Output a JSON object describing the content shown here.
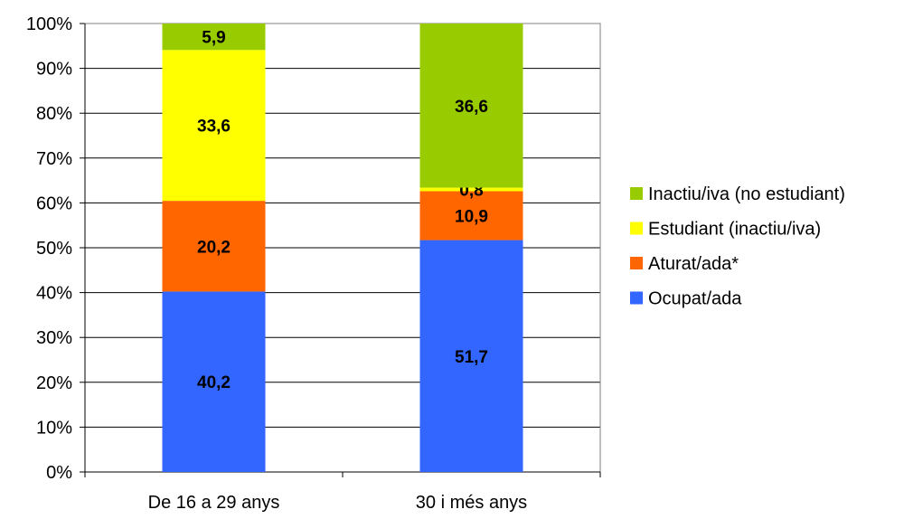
{
  "chart_data": {
    "type": "bar",
    "stacked": true,
    "percent_stacked": true,
    "categories": [
      "De 16 a 29 anys",
      "30 i més anys"
    ],
    "series": [
      {
        "name": "Ocupat/ada",
        "color": "#3366FF",
        "values": [
          40.2,
          51.7
        ]
      },
      {
        "name": "Aturat/ada*",
        "color": "#FF6600",
        "values": [
          20.2,
          10.9
        ]
      },
      {
        "name": "Estudiant (inactiu/iva)",
        "color": "#FFFF00",
        "values": [
          33.6,
          0.8
        ]
      },
      {
        "name": "Inactiu/iva (no estudiant)",
        "color": "#99CC00",
        "values": [
          5.9,
          36.6
        ]
      }
    ],
    "data_labels": [
      [
        "40,2",
        "51,7"
      ],
      [
        "20,2",
        "10,9"
      ],
      [
        "33,6",
        "0,8"
      ],
      [
        "5,9",
        "36,6"
      ]
    ],
    "yticks": [
      "0%",
      "10%",
      "20%",
      "30%",
      "40%",
      "50%",
      "60%",
      "70%",
      "80%",
      "90%",
      "100%"
    ],
    "ylim": [
      0,
      100
    ],
    "grid": true,
    "legend_position": "right",
    "legend_order": [
      "Inactiu/iva (no estudiant)",
      "Estudiant (inactiu/iva)",
      "Aturat/ada*",
      "Ocupat/ada"
    ],
    "title": "",
    "xlabel": "",
    "ylabel": ""
  }
}
